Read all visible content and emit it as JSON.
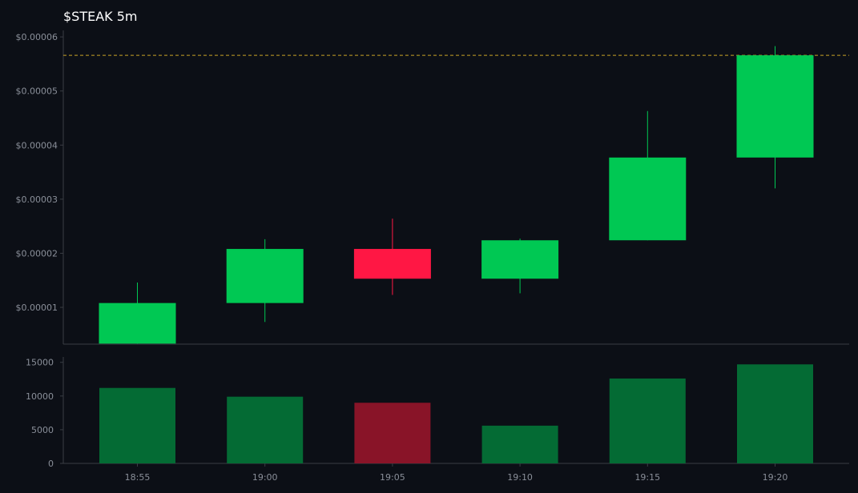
{
  "chart_data": {
    "type": "candlestick",
    "title": "$STEAK 5m",
    "categories": [
      "18:55",
      "19:00",
      "19:05",
      "19:10",
      "19:15",
      "19:20"
    ],
    "ohlc": [
      {
        "open": 3.3e-06,
        "high": 1.46e-05,
        "low": 3.3e-06,
        "close": 1.08e-05
      },
      {
        "open": 1.08e-05,
        "high": 2.26e-05,
        "low": 7.3e-06,
        "close": 2.08e-05
      },
      {
        "open": 2.08e-05,
        "high": 2.64e-05,
        "low": 1.23e-05,
        "close": 1.53e-05
      },
      {
        "open": 1.53e-05,
        "high": 2.27e-05,
        "low": 1.26e-05,
        "close": 2.24e-05
      },
      {
        "open": 2.24e-05,
        "high": 4.63e-05,
        "low": 2.24e-05,
        "close": 3.77e-05
      },
      {
        "open": 3.77e-05,
        "high": 5.83e-05,
        "low": 3.2e-05,
        "close": 5.66e-05
      }
    ],
    "volume": [
      11200,
      9900,
      9000,
      5600,
      12600,
      14700
    ],
    "reference_line": 5.66e-05,
    "price_axis": {
      "ticks": [
        1e-05,
        2e-05,
        3e-05,
        4e-05,
        5e-05,
        6e-05
      ],
      "tick_labels": [
        "$0.00001",
        "$0.00002",
        "$0.00003",
        "$0.00004",
        "$0.00005",
        "$0.00006"
      ],
      "ylim": [
        3.2e-06,
        6.12e-05
      ]
    },
    "volume_axis": {
      "ticks": [
        0,
        5000,
        10000,
        15000
      ],
      "tick_labels": [
        "0",
        "5000",
        "10000",
        "15000"
      ],
      "ylim": [
        0,
        15800
      ]
    },
    "grid": false,
    "colors": {
      "up": "#00c853",
      "down": "#ff1744",
      "volume_up": "#046b34",
      "volume_down": "#891428",
      "reference_line": "#c9a227",
      "background": "#0c0f16"
    }
  }
}
